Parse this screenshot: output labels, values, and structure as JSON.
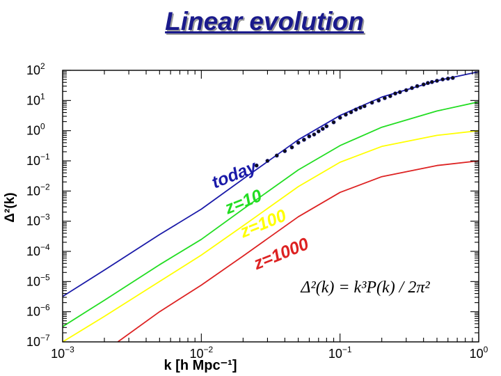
{
  "slide": {
    "title": "Linear evolution"
  },
  "chart_data": {
    "type": "line",
    "title": "Linear evolution",
    "xlabel": "k [h Mpc⁻¹]",
    "ylabel": "Δ²(k)",
    "xscale": "log",
    "yscale": "log",
    "xlim": [
      0.001,
      1
    ],
    "ylim": [
      1e-07,
      100
    ],
    "x_ticks": [
      {
        "value": 0.001,
        "base": "10",
        "exp": "−3"
      },
      {
        "value": 0.01,
        "base": "10",
        "exp": "−2"
      },
      {
        "value": 0.1,
        "base": "10",
        "exp": "−1"
      },
      {
        "value": 1,
        "base": "10",
        "exp": "0"
      }
    ],
    "y_ticks": [
      {
        "value": 100,
        "base": "10",
        "exp": "2"
      },
      {
        "value": 10,
        "base": "10",
        "exp": "1"
      },
      {
        "value": 1,
        "base": "10",
        "exp": "0"
      },
      {
        "value": 0.1,
        "base": "10",
        "exp": "−1"
      },
      {
        "value": 0.01,
        "base": "10",
        "exp": "−2"
      },
      {
        "value": 0.001,
        "base": "10",
        "exp": "−3"
      },
      {
        "value": 0.0001,
        "base": "10",
        "exp": "−4"
      },
      {
        "value": 1e-05,
        "base": "10",
        "exp": "−5"
      },
      {
        "value": 1e-06,
        "base": "10",
        "exp": "−6"
      },
      {
        "value": 1e-07,
        "base": "10",
        "exp": "−7"
      }
    ],
    "series": [
      {
        "name": "today",
        "color": "#1a1aa8",
        "x": [
          0.001,
          0.002,
          0.005,
          0.01,
          0.02,
          0.05,
          0.1,
          0.2,
          0.5,
          1.0
        ],
        "y": [
          3.2e-06,
          2.4e-05,
          0.00036,
          0.0025,
          0.025,
          0.5,
          3.2,
          13,
          45,
          90
        ]
      },
      {
        "name": "z=10",
        "color": "#22dd22",
        "x": [
          0.001,
          0.002,
          0.005,
          0.01,
          0.02,
          0.05,
          0.1,
          0.2,
          0.5,
          1.0
        ],
        "y": [
          3.2e-07,
          2.4e-06,
          3.6e-05,
          0.00025,
          0.0025,
          0.05,
          0.32,
          1.3,
          4.5,
          9.0
        ]
      },
      {
        "name": "z=100",
        "color": "#ffff00",
        "x": [
          0.001,
          0.002,
          0.005,
          0.01,
          0.02,
          0.05,
          0.1,
          0.2,
          0.5,
          1.0
        ],
        "y": [
          1e-07,
          7e-07,
          1e-05,
          7.5e-05,
          0.0007,
          0.014,
          0.09,
          0.3,
          0.7,
          1.0
        ]
      },
      {
        "name": "z=1000",
        "color": "#dd2222",
        "x": [
          0.0025,
          0.005,
          0.01,
          0.02,
          0.05,
          0.1,
          0.2,
          0.5,
          1.0
        ],
        "y": [
          1e-07,
          1e-06,
          7.6e-06,
          7e-05,
          0.0014,
          0.009,
          0.03,
          0.07,
          0.1
        ]
      }
    ],
    "observations": {
      "name": "data points",
      "color": "#111111",
      "x": [
        0.025,
        0.03,
        0.035,
        0.04,
        0.045,
        0.05,
        0.055,
        0.06,
        0.065,
        0.07,
        0.075,
        0.08,
        0.09,
        0.1,
        0.11,
        0.12,
        0.13,
        0.14,
        0.15,
        0.17,
        0.19,
        0.21,
        0.23,
        0.25,
        0.27,
        0.3,
        0.33,
        0.36,
        0.4,
        0.43,
        0.46,
        0.5,
        0.55,
        0.6,
        0.65
      ],
      "y": [
        0.07,
        0.1,
        0.15,
        0.21,
        0.28,
        0.4,
        0.5,
        0.65,
        0.75,
        0.95,
        1.15,
        1.4,
        1.9,
        2.7,
        3.4,
        4.1,
        5.0,
        5.8,
        6.5,
        8.5,
        10,
        12,
        14,
        17,
        19,
        22,
        26,
        30,
        34,
        38,
        41,
        45,
        50,
        53,
        56
      ]
    },
    "annotations": [
      {
        "text": "today",
        "color": "#1a1aa8",
        "anchor_x": 0.0125,
        "anchor_y": 0.012
      },
      {
        "text": "z=10",
        "color": "#22dd22",
        "anchor_x": 0.0155,
        "anchor_y": 0.0017
      },
      {
        "text": "z=100",
        "color": "#ffff00",
        "anchor_x": 0.02,
        "anchor_y": 0.00028
      },
      {
        "text": "z=1000",
        "color": "#dd2222",
        "anchor_x": 0.025,
        "anchor_y": 2.45e-05
      }
    ],
    "formula": "Δ²(k) = k³P(k) / 2π²",
    "grid": false,
    "legend": "none"
  }
}
